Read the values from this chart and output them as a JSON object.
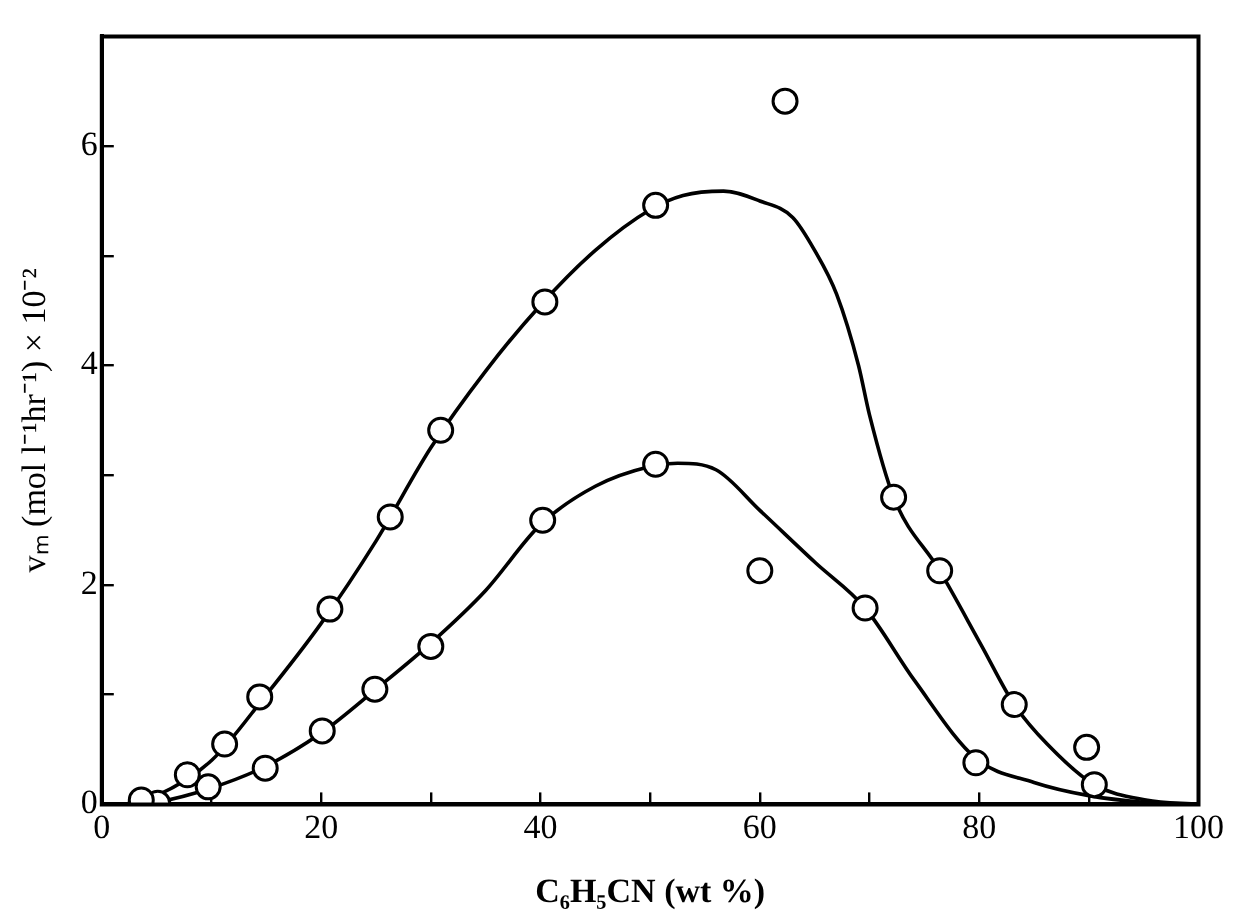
{
  "chart_data": {
    "type": "scatter",
    "xlabel": "C₆H₅CN (wt %)",
    "ylabel": "vₘ (mol l⁻¹hr⁻¹) × 10⁻²",
    "xlim": [
      0,
      100
    ],
    "ylim": [
      0,
      7
    ],
    "xticks": [
      0,
      {
        "value": 10,
        "label": null
      },
      20,
      {
        "value": 30,
        "label": null
      },
      40,
      {
        "value": 50,
        "label": null
      },
      60,
      {
        "value": 70,
        "label": null
      },
      80,
      {
        "value": 90,
        "label": null
      },
      100
    ],
    "yticks": [
      0,
      {
        "value": 1,
        "label": null
      },
      2,
      {
        "value": 3,
        "label": null
      },
      4,
      {
        "value": 5,
        "label": null
      },
      6
    ],
    "grid": false,
    "legend": false,
    "series": [
      {
        "marker": "circle",
        "color": "#000000",
        "x": [
          3.6,
          7.8,
          11.2,
          14.4,
          20.8,
          26.3,
          30.9,
          40.4,
          50.5,
          62.3,
          72.2,
          76.4,
          83.2,
          90.5
        ],
        "values": [
          0.04,
          0.27,
          0.55,
          0.98,
          1.78,
          2.62,
          3.41,
          4.58,
          5.46,
          6.41,
          2.8,
          2.13,
          0.91,
          0.18
        ]
      },
      {
        "marker": "circle",
        "color": "#000000",
        "x": [
          5.1,
          9.7,
          14.9,
          20.1,
          24.9,
          30.0,
          40.2,
          50.5,
          60,
          69.6,
          79.7,
          89.8
        ],
        "values": [
          0.01,
          0.16,
          0.33,
          0.67,
          1.05,
          1.44,
          2.59,
          3.1,
          2.13,
          1.79,
          0.38,
          0.52
        ]
      },
      {
        "type": "line",
        "marker": "none",
        "line_style": "solid",
        "color": "#000000",
        "x": [
          2,
          5,
          10,
          15,
          20,
          25,
          30,
          35,
          40,
          45,
          50,
          53,
          56.7,
          60,
          63,
          65,
          67,
          69,
          70,
          72.2,
          76.4,
          80.2,
          83.2,
          86.2,
          90.5,
          95.2,
          100
        ],
        "values": [
          0,
          0.08,
          0.4,
          1.0,
          1.65,
          2.4,
          3.25,
          3.95,
          4.55,
          5.05,
          5.42,
          5.55,
          5.59,
          5.5,
          5.35,
          5.05,
          4.65,
          4.0,
          3.55,
          2.8,
          2.13,
          1.45,
          0.91,
          0.55,
          0.18,
          0.04,
          0
        ]
      },
      {
        "type": "line",
        "marker": "none",
        "line_style": "solid",
        "color": "#000000",
        "x": [
          3,
          5,
          10,
          15,
          20,
          25,
          30,
          35,
          40,
          45,
          50,
          52.5,
          56,
          60,
          65.1,
          69.6,
          74.1,
          79.7,
          85,
          90,
          95,
          100
        ],
        "values": [
          0,
          0.02,
          0.15,
          0.35,
          0.65,
          1.05,
          1.47,
          1.95,
          2.55,
          2.9,
          3.08,
          3.11,
          3.05,
          2.68,
          2.2,
          1.79,
          1.13,
          0.42,
          0.2,
          0.08,
          0.02,
          0
        ]
      }
    ]
  }
}
